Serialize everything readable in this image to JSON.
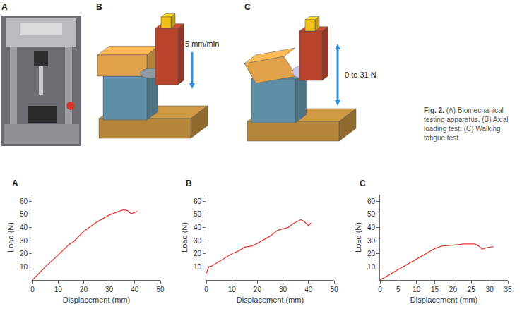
{
  "figure": {
    "panels": [
      {
        "label": "A"
      },
      {
        "label": "B",
        "annotation": "5 mm/min"
      },
      {
        "label": "C",
        "annotation": "0 to 31 N"
      }
    ],
    "caption": {
      "label": "Fig. 2.",
      "text": "(A) Biomechanical testing apparatus. (B) Axial loading test. (C) Walking fatigue test."
    }
  },
  "chart_data": [
    {
      "type": "line",
      "panel": "A",
      "x_label": "Displacement (mm)",
      "y_label": "Load (N)",
      "color": "#e03a2f",
      "x": [
        0,
        5,
        10,
        14,
        14.5,
        16,
        20,
        25,
        30,
        34,
        35.5,
        37,
        38.5,
        40,
        41
      ],
      "values": [
        0,
        10,
        19,
        27,
        27.5,
        29,
        37,
        44,
        49.5,
        52.5,
        53.5,
        53,
        50.5,
        51.5,
        52.5
      ],
      "xlim": [
        0,
        50
      ],
      "xticks": [
        0,
        10,
        20,
        30,
        40,
        50
      ],
      "ylim": [
        0,
        65
      ],
      "yticks": [
        10,
        20,
        30,
        40,
        50,
        60
      ],
      "grid": false
    },
    {
      "type": "line",
      "panel": "B",
      "x_label": "Displacement (mm)",
      "y_label": "Load (N)",
      "color": "#e03a2f",
      "x": [
        0,
        1,
        2,
        5,
        10,
        13,
        15,
        18,
        20,
        25,
        28,
        30,
        32,
        34,
        37,
        38,
        40,
        41
      ],
      "values": [
        5,
        10,
        10.5,
        14,
        20,
        22.5,
        25,
        26,
        28,
        33.5,
        38,
        39,
        40,
        43,
        46,
        45,
        41.5,
        43.5
      ],
      "xlim": [
        0,
        50
      ],
      "xticks": [
        0,
        10,
        20,
        30,
        40,
        50
      ],
      "ylim": [
        0,
        65
      ],
      "yticks": [
        10,
        20,
        30,
        40,
        50,
        60
      ],
      "grid": false
    },
    {
      "type": "line",
      "panel": "C",
      "x_label": "Displacement (mm)",
      "y_label": "Load (N)",
      "color": "#e03a2f",
      "x": [
        0,
        5,
        10,
        15,
        17,
        20,
        23,
        26,
        27,
        28,
        29,
        31
      ],
      "values": [
        0,
        8,
        16,
        24,
        26,
        26.5,
        27.5,
        27.5,
        26,
        23.5,
        24.5,
        25.5
      ],
      "xlim": [
        0,
        35
      ],
      "xticks": [
        0,
        5,
        10,
        15,
        20,
        25,
        30,
        35
      ],
      "ylim": [
        0,
        65
      ],
      "yticks": [
        10,
        20,
        30,
        40,
        50,
        60
      ],
      "grid": false
    }
  ]
}
